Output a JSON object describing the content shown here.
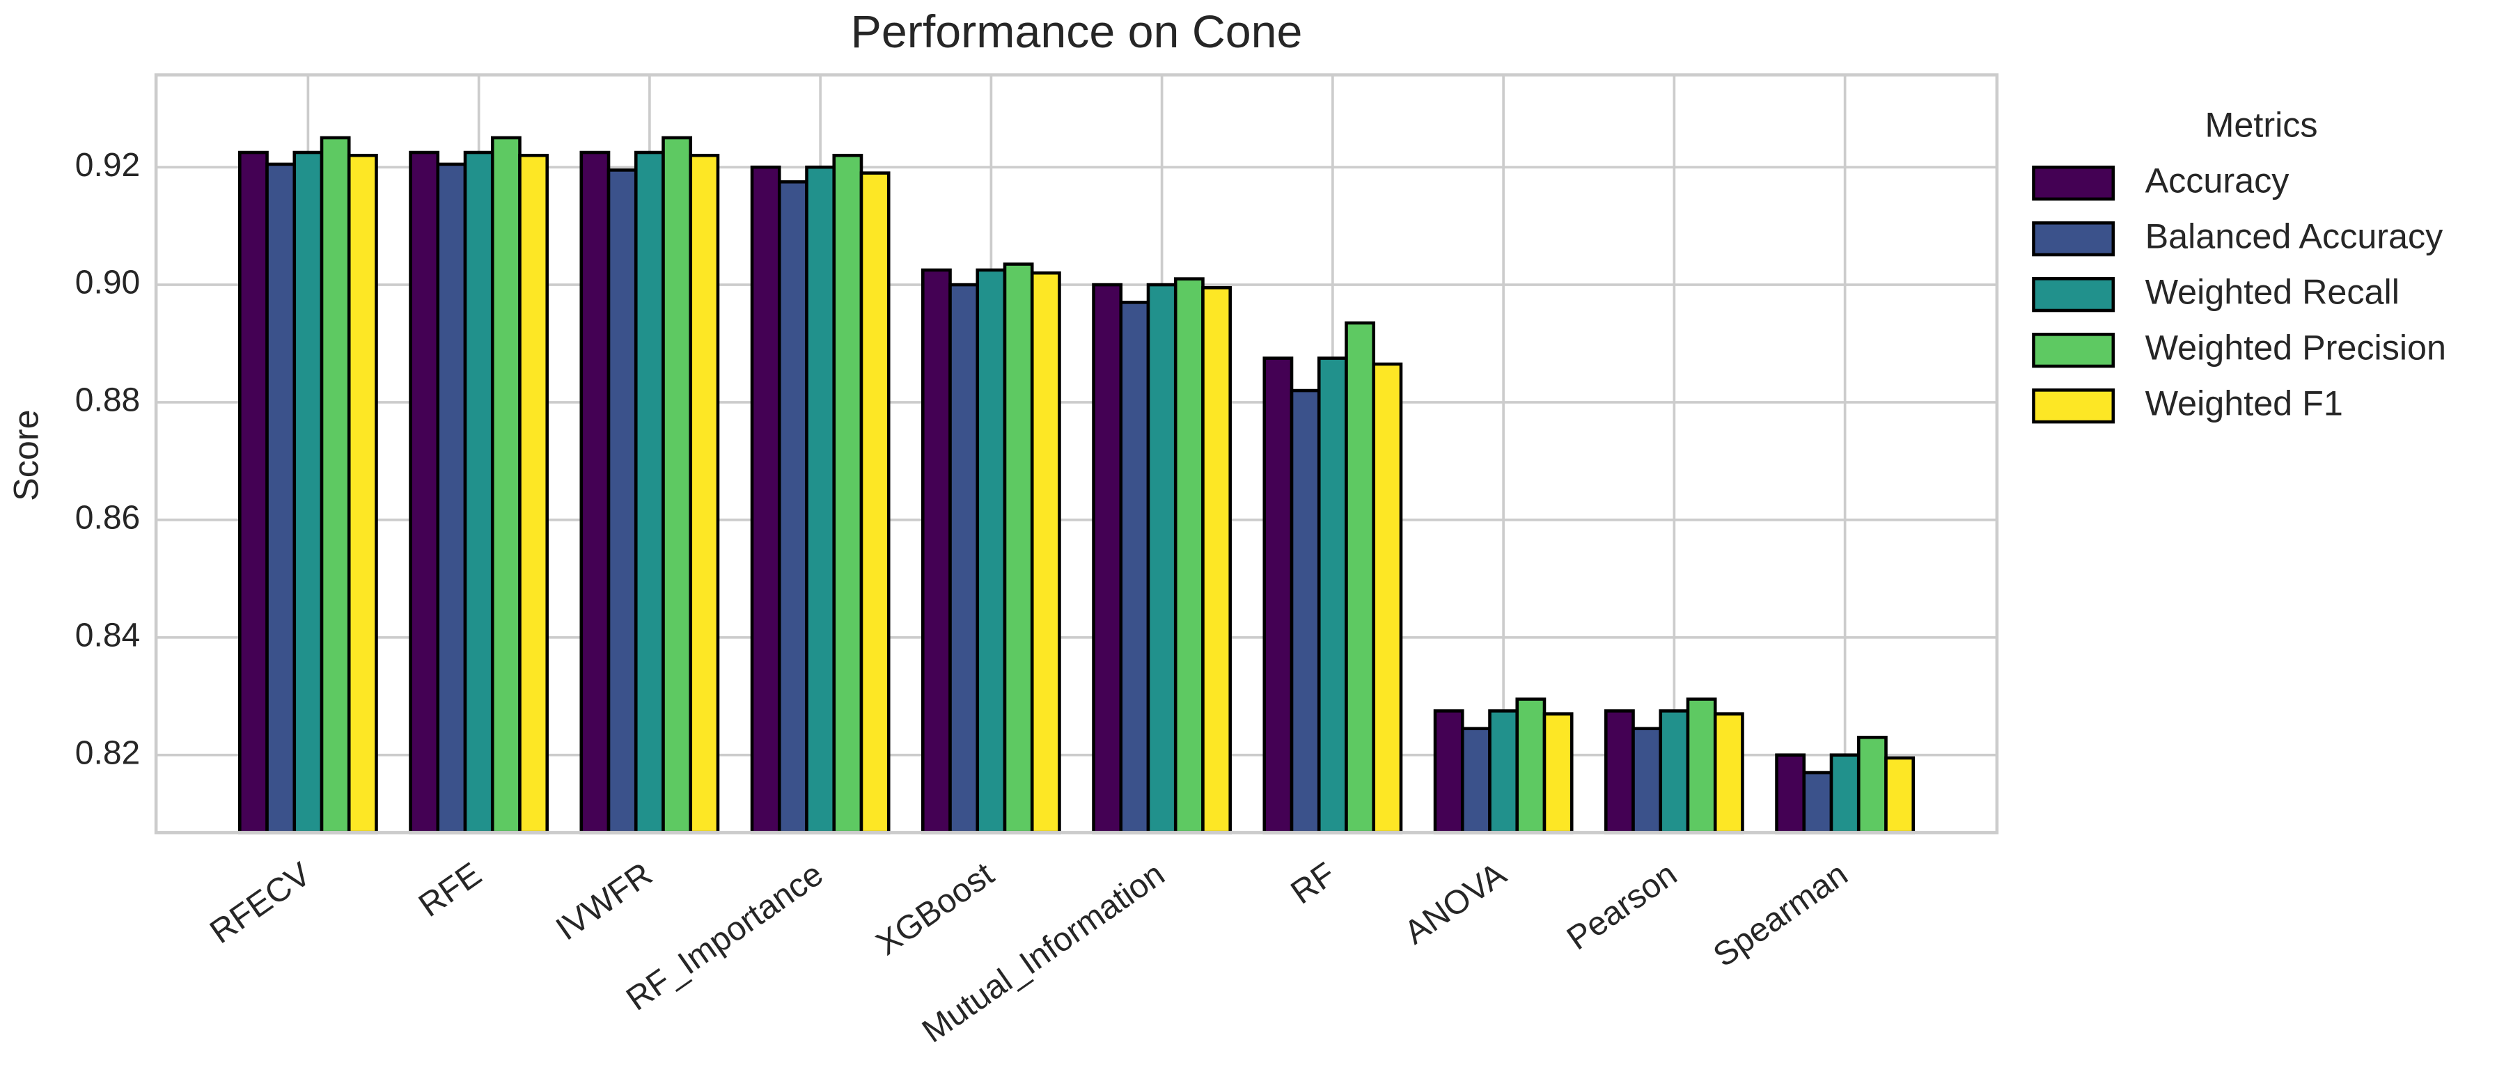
{
  "chart_data": {
    "type": "bar",
    "title": "Performance on Cone",
    "y_label": "Score",
    "legend_title": "Metrics",
    "categories": [
      "RFECV",
      "RFE",
      "IVWFR",
      "RF_Importance",
      "XGBoost",
      "Mutual_Information",
      "RF",
      "ANOVA",
      "Pearson",
      "Spearman"
    ],
    "series": [
      {
        "name": "Accuracy",
        "color": "#440154",
        "values": [
          0.9225,
          0.9225,
          0.9225,
          0.92,
          0.9025,
          0.9,
          0.8875,
          0.8275,
          0.8275,
          0.82
        ]
      },
      {
        "name": "Balanced Accuracy",
        "color": "#3b528b",
        "values": [
          0.9205,
          0.9205,
          0.9195,
          0.9175,
          0.9,
          0.897,
          0.882,
          0.8245,
          0.8245,
          0.817
        ]
      },
      {
        "name": "Weighted Recall",
        "color": "#21918c",
        "values": [
          0.9225,
          0.9225,
          0.9225,
          0.92,
          0.9025,
          0.9,
          0.8875,
          0.8275,
          0.8275,
          0.82
        ]
      },
      {
        "name": "Weighted Precision",
        "color": "#5ec962",
        "values": [
          0.925,
          0.925,
          0.925,
          0.922,
          0.9035,
          0.901,
          0.8935,
          0.8295,
          0.8295,
          0.823
        ]
      },
      {
        "name": "Weighted F1",
        "color": "#fde725",
        "values": [
          0.922,
          0.922,
          0.922,
          0.919,
          0.902,
          0.8995,
          0.8865,
          0.827,
          0.827,
          0.8195
        ]
      }
    ],
    "ylim": [
      0.8068,
      0.9357
    ],
    "yticks": [
      0.82,
      0.84,
      0.86,
      0.88,
      {
        "value": 0.9,
        "label": "0.90"
      },
      0.92
    ],
    "grid": true
  }
}
